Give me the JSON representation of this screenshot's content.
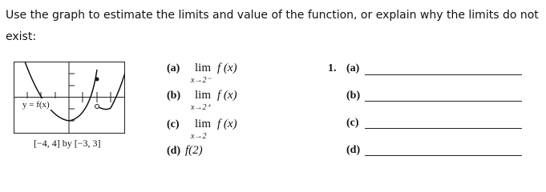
{
  "instruction": "Use the graph to estimate the limits and value of the function, or explain why the limits do not exist:",
  "graph": {
    "label": "y = f(x)",
    "window": "[−4, 4] by [−3, 3]"
  },
  "parts": [
    {
      "label": "(a)",
      "lim": "lim",
      "expr": "f (x)",
      "approach": "x→2⁻"
    },
    {
      "label": "(b)",
      "lim": "lim",
      "expr": "f (x)",
      "approach": "x→2⁺"
    },
    {
      "label": "(c)",
      "lim": "lim",
      "expr": "f (x)",
      "approach": "x→2"
    },
    {
      "label": "(d)",
      "expr": "f(2)"
    }
  ],
  "answers": {
    "number": "1.",
    "labels": [
      "(a)",
      "(b)",
      "(c)",
      "(d)"
    ]
  }
}
